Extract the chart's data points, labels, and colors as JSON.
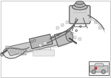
{
  "bg_color": "#ffffff",
  "border_color": "#999999",
  "line_color": "#444444",
  "light_gray": "#bbbbbb",
  "mid_gray": "#999999",
  "dark_gray": "#555555",
  "very_light": "#e8e8e8",
  "white": "#ffffff",
  "rack_fill": "#d0d0d0",
  "rack_shadow": "#b0b0b0",
  "hose_color": "#666666",
  "res_fill": "#c8c8c8",
  "inset_bg": "#f0f0f0"
}
